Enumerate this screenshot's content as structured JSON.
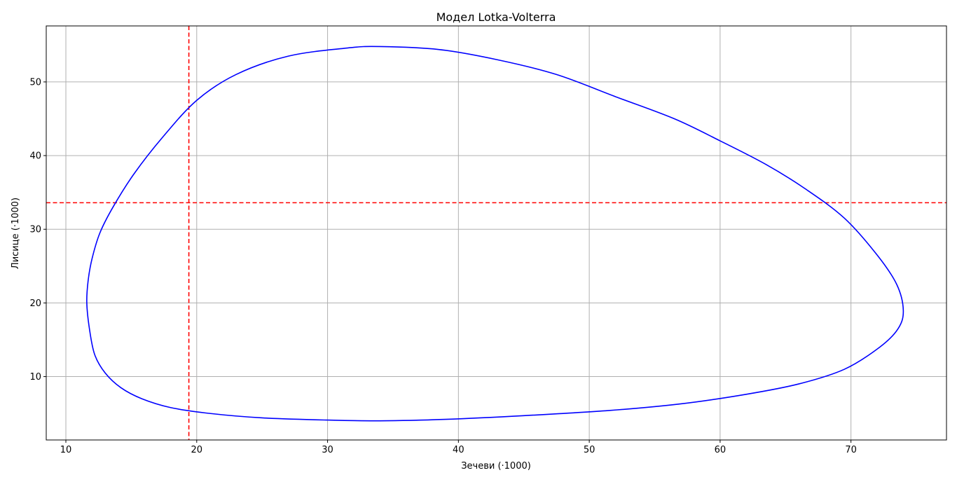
{
  "chart_data": {
    "type": "line",
    "title": "Модел Lotka-Volterra",
    "xlabel": "Зечеви (·1000)",
    "ylabel": "Лисице (·1000)",
    "xlim": [
      8.5,
      77.3
    ],
    "ylim": [
      1.4,
      57.6
    ],
    "xticks": [
      10,
      20,
      30,
      40,
      50,
      60,
      70
    ],
    "yticks": [
      10,
      20,
      30,
      40,
      50
    ],
    "grid": true,
    "series": [
      {
        "color": "#0000ff",
        "style": "solid",
        "x": [
          11.6,
          11.7,
          12.0,
          12.6,
          13.6,
          15.2,
          17.4,
          20.0,
          23.0,
          27.0,
          31.5,
          34.0,
          38.5,
          43.0,
          47.5,
          52.0,
          56.5,
          60.0,
          63.5,
          66.5,
          69.5,
          72.0,
          73.5,
          74.0,
          73.6,
          72.2,
          69.5,
          66.0,
          62.0,
          57.0,
          51.5,
          45.0,
          39.0,
          34.0,
          30.0,
          25.0,
          21.0,
          18.0,
          15.8,
          14.2,
          13.0,
          12.2,
          11.8,
          11.6
        ],
        "y": [
          20.0,
          23.0,
          26.0,
          29.5,
          33.0,
          37.5,
          42.5,
          47.5,
          51.0,
          53.5,
          54.6,
          54.8,
          54.4,
          53.0,
          51.0,
          48.0,
          45.0,
          42.0,
          38.8,
          35.5,
          31.5,
          26.5,
          22.5,
          19.0,
          16.5,
          14.0,
          11.0,
          9.0,
          7.6,
          6.3,
          5.4,
          4.7,
          4.2,
          4.0,
          4.1,
          4.4,
          5.0,
          5.8,
          7.0,
          8.5,
          10.5,
          13.0,
          16.5,
          20.0
        ]
      }
    ],
    "reference_lines": [
      {
        "orientation": "vertical",
        "value": 19.4,
        "color": "#ff0000",
        "style": "dashed"
      },
      {
        "orientation": "horizontal",
        "value": 33.6,
        "color": "#ff0000",
        "style": "dashed"
      }
    ]
  }
}
